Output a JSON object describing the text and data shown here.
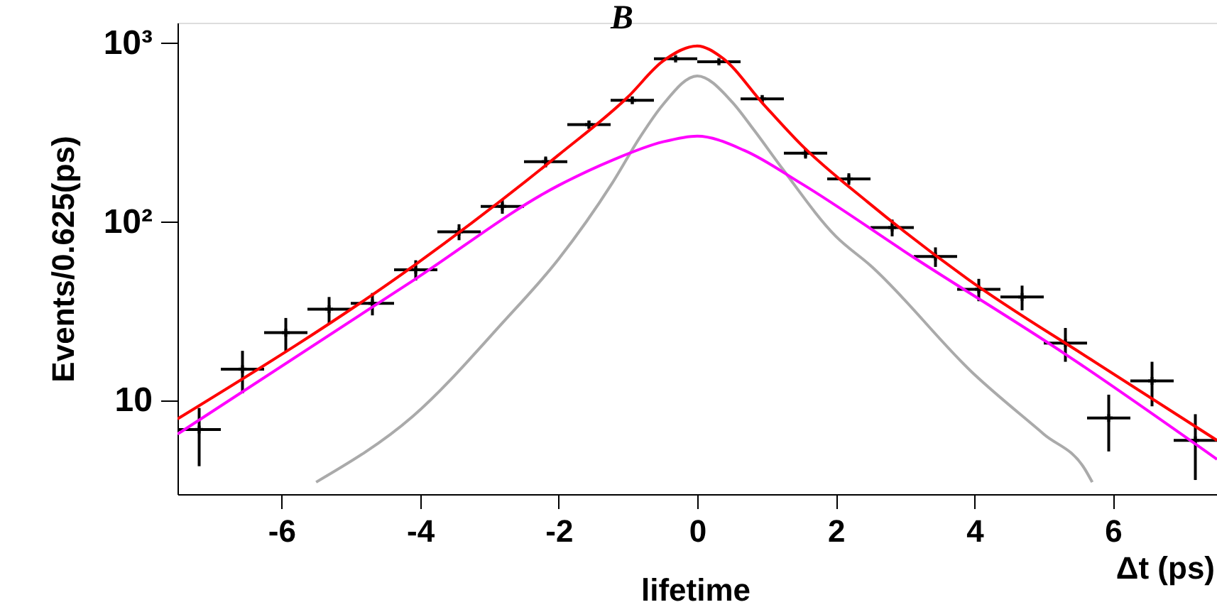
{
  "chart_data": {
    "type": "scatter",
    "title": "B",
    "xlabel": "Δt (ps)",
    "ylabel": "Events/0.625(ps)",
    "annotations": [
      "lifetime"
    ],
    "xlim": [
      -7.5,
      7.5
    ],
    "xticks": [
      -6,
      -4,
      -2,
      0,
      2,
      4,
      6
    ],
    "ylim": [
      3,
      1300
    ],
    "yticks": [
      10,
      {
        "value": 100,
        "label": "10²"
      },
      {
        "value": 1000,
        "label": "10³"
      }
    ],
    "log": "y",
    "series": [
      {
        "marker": "cross",
        "color": "#000000",
        "x": [
          -7.1875,
          -6.5625,
          -5.9375,
          -5.3125,
          -4.6875,
          -4.0625,
          -3.4375,
          -2.8125,
          -2.1875,
          -1.5625,
          -0.9375,
          -0.3125,
          0.3125,
          0.9375,
          1.5625,
          2.1875,
          2.8125,
          3.4375,
          4.0625,
          4.6875,
          5.3125,
          5.9375,
          6.5625,
          7.1875
        ],
        "values": [
          6.9,
          15,
          24,
          32.5,
          35,
          54,
          88,
          122,
          217,
          350,
          479,
          817,
          787,
          488,
          242,
          174,
          93,
          64,
          42,
          38,
          21,
          8.0,
          12.9,
          6.0
        ],
        "errors": [
          [
            4.3,
            9.1
          ],
          [
            11,
            19
          ],
          [
            19,
            29
          ],
          [
            27,
            38
          ],
          [
            30,
            40
          ],
          [
            47,
            61
          ],
          [
            79,
            97
          ],
          [
            111,
            133
          ],
          [
            202,
            232
          ],
          [
            331,
            369
          ],
          [
            457,
            501
          ],
          [
            788,
            846
          ],
          [
            759,
            815
          ],
          [
            466,
            510
          ],
          [
            226,
            258
          ],
          [
            161,
            187
          ],
          [
            83,
            103
          ],
          [
            56,
            72
          ],
          [
            36,
            48
          ],
          [
            32,
            44
          ],
          [
            16.5,
            25.5
          ],
          [
            5.2,
            10.8
          ],
          [
            9.3,
            16.5
          ],
          [
            3.6,
            8.4
          ]
        ],
        "xerrors": [
          0.3125,
          0.3125,
          0.3125,
          0.3125,
          0.3125,
          0.3125,
          0.3125,
          0.3125,
          0.3125,
          0.3125,
          0.3125,
          0.3125,
          0.3125,
          0.3125,
          0.3125,
          0.3125,
          0.3125,
          0.3125,
          0.3125,
          0.3125,
          0.3125,
          0.3125,
          0.3125,
          0.3125
        ]
      },
      {
        "type": "line",
        "color": "#aaaaaa",
        "x": [
          -5.5,
          -4.1,
          -2.8,
          -2.0,
          -1.23,
          -0.82,
          -0.5,
          0,
          0.5,
          0.82,
          1.23,
          2.0,
          2.5,
          4.0,
          5.0,
          5.6,
          5.7
        ],
        "values": [
          3.5,
          8.2,
          27.5,
          62,
          164,
          300,
          450,
          655,
          470,
          326,
          198,
          83,
          57,
          14,
          6.5,
          4.1,
          3.5
        ]
      },
      {
        "type": "line",
        "color": "#ff00ff",
        "x": [
          -7.5,
          -4.1,
          -2.0,
          -1.23,
          -0.5,
          0,
          0.68,
          1.5,
          3.13,
          5.33,
          7.5
        ],
        "values": [
          6.5,
          47,
          160,
          221,
          280,
          302,
          251,
          164,
          63,
          18,
          4.7
        ]
      },
      {
        "type": "line",
        "color": "#ff0000",
        "x": [
          -7.5,
          -4.06,
          -2.0,
          -1.0,
          -0.5,
          0,
          0.35,
          0.96,
          1.5,
          2.46,
          3.9,
          5.68,
          7.5
        ],
        "values": [
          7.9,
          58,
          237,
          500,
          790,
          964,
          834,
          453,
          270,
          129,
          48,
          17,
          6.0
        ]
      }
    ]
  }
}
